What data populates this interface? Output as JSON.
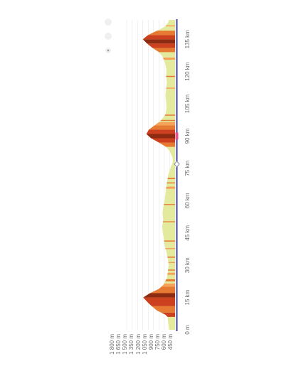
{
  "chart_data": {
    "type": "area",
    "orientation": "rotated-90-ccw",
    "xlabel": "",
    "ylabel": "",
    "x_unit": "km",
    "y_unit": "m",
    "xlim": [
      0,
      144
    ],
    "ylim": [
      450,
      1800
    ],
    "x_ticks": [
      "0 m",
      "15 km",
      "30 km",
      "45 km",
      "60 km",
      "75 km",
      "90 km",
      "105 km",
      "120 km",
      "135 km"
    ],
    "y_ticks": [
      "450 m",
      "600 m",
      "750 m",
      "900 m",
      "1 050 m",
      "1 200 m",
      "1 350 m",
      "1 500 m",
      "1 650 m",
      "1 800 m"
    ],
    "grid": true,
    "series": [
      {
        "x": [
          0,
          6,
          7,
          9,
          12,
          15,
          17,
          19,
          21,
          24,
          27,
          30,
          33,
          36,
          39,
          42,
          45,
          48,
          51,
          54,
          57,
          60,
          63,
          66,
          69,
          72,
          75,
          78,
          80,
          83,
          85,
          87,
          89,
          91,
          93,
          95,
          97,
          100,
          103,
          106,
          109,
          112,
          115,
          118,
          121,
          124,
          127,
          129,
          131,
          133,
          135,
          137,
          139,
          141,
          143,
          144
        ],
        "y": [
          620,
          660,
          720,
          960,
          1170,
          1340,
          1150,
          900,
          770,
          680,
          650,
          630,
          650,
          690,
          740,
          760,
          790,
          810,
          780,
          800,
          780,
          740,
          720,
          700,
          670,
          640,
          580,
          510,
          520,
          600,
          700,
          900,
          1120,
          1250,
          1180,
          1020,
          860,
          720,
          690,
          700,
          720,
          700,
          680,
          700,
          690,
          730,
          800,
          900,
          1080,
          1230,
          1350,
          1200,
          950,
          720,
          640,
          620
        ]
      }
    ],
    "gradient_colors": [
      "#e4ea9d",
      "#f4a15a",
      "#e67a33",
      "#cc3f1f",
      "#8c2b12"
    ],
    "gradient_segments": [
      {
        "x": [
          6,
          8
        ],
        "level": 3
      },
      {
        "x": [
          8,
          11
        ],
        "level": 2
      },
      {
        "x": [
          11,
          15
        ],
        "level": 3
      },
      {
        "x": [
          15,
          17
        ],
        "level": 4
      },
      {
        "x": [
          17,
          20
        ],
        "level": 2
      },
      {
        "x": [
          20,
          21.5
        ],
        "level": 1
      },
      {
        "x": [
          22.5,
          23.5
        ],
        "level": 2
      },
      {
        "x": [
          25.5,
          26.5
        ],
        "level": 1
      },
      {
        "x": [
          27.5,
          28
        ],
        "level": 2
      },
      {
        "x": [
          31,
          31.5
        ],
        "level": 1
      },
      {
        "x": [
          33.5,
          34
        ],
        "level": 2
      },
      {
        "x": [
          37.5,
          38
        ],
        "level": 1
      },
      {
        "x": [
          41,
          41.5
        ],
        "level": 2
      },
      {
        "x": [
          50,
          50.4
        ],
        "level": 2
      },
      {
        "x": [
          58,
          58.4
        ],
        "level": 2
      },
      {
        "x": [
          65.5,
          66.5
        ],
        "level": 1
      },
      {
        "x": [
          68,
          68.5
        ],
        "level": 2
      },
      {
        "x": [
          70,
          70.6
        ],
        "level": 2
      },
      {
        "x": [
          85,
          87
        ],
        "level": 2
      },
      {
        "x": [
          87,
          89
        ],
        "level": 3
      },
      {
        "x": [
          89,
          91
        ],
        "level": 4
      },
      {
        "x": [
          91,
          93
        ],
        "level": 3
      },
      {
        "x": [
          93,
          95
        ],
        "level": 2
      },
      {
        "x": [
          95,
          96.5
        ],
        "level": 1
      },
      {
        "x": [
          97,
          97.5
        ],
        "level": 2
      },
      {
        "x": [
          99.5,
          100
        ],
        "level": 2
      },
      {
        "x": [
          112,
          112.5
        ],
        "level": 1
      },
      {
        "x": [
          117.5,
          118
        ],
        "level": 2
      },
      {
        "x": [
          125.5,
          126.5
        ],
        "level": 1
      },
      {
        "x": [
          129,
          131
        ],
        "level": 2
      },
      {
        "x": [
          131,
          133
        ],
        "level": 3
      },
      {
        "x": [
          133,
          135
        ],
        "level": 4
      },
      {
        "x": [
          135,
          137
        ],
        "level": 3
      },
      {
        "x": [
          137,
          139
        ],
        "level": 2
      },
      {
        "x": [
          141,
          141.5
        ],
        "level": 1
      }
    ],
    "track_markers": [
      {
        "x": 77,
        "shape": "diamond",
        "color": "#8a8ea0"
      },
      {
        "x": 90,
        "shape": "bar",
        "color": "#e8508a"
      }
    ],
    "colors": {
      "baseline": "#3f4494",
      "grid": "#e6e6e6",
      "axis_text": "#6a6a6a"
    }
  }
}
